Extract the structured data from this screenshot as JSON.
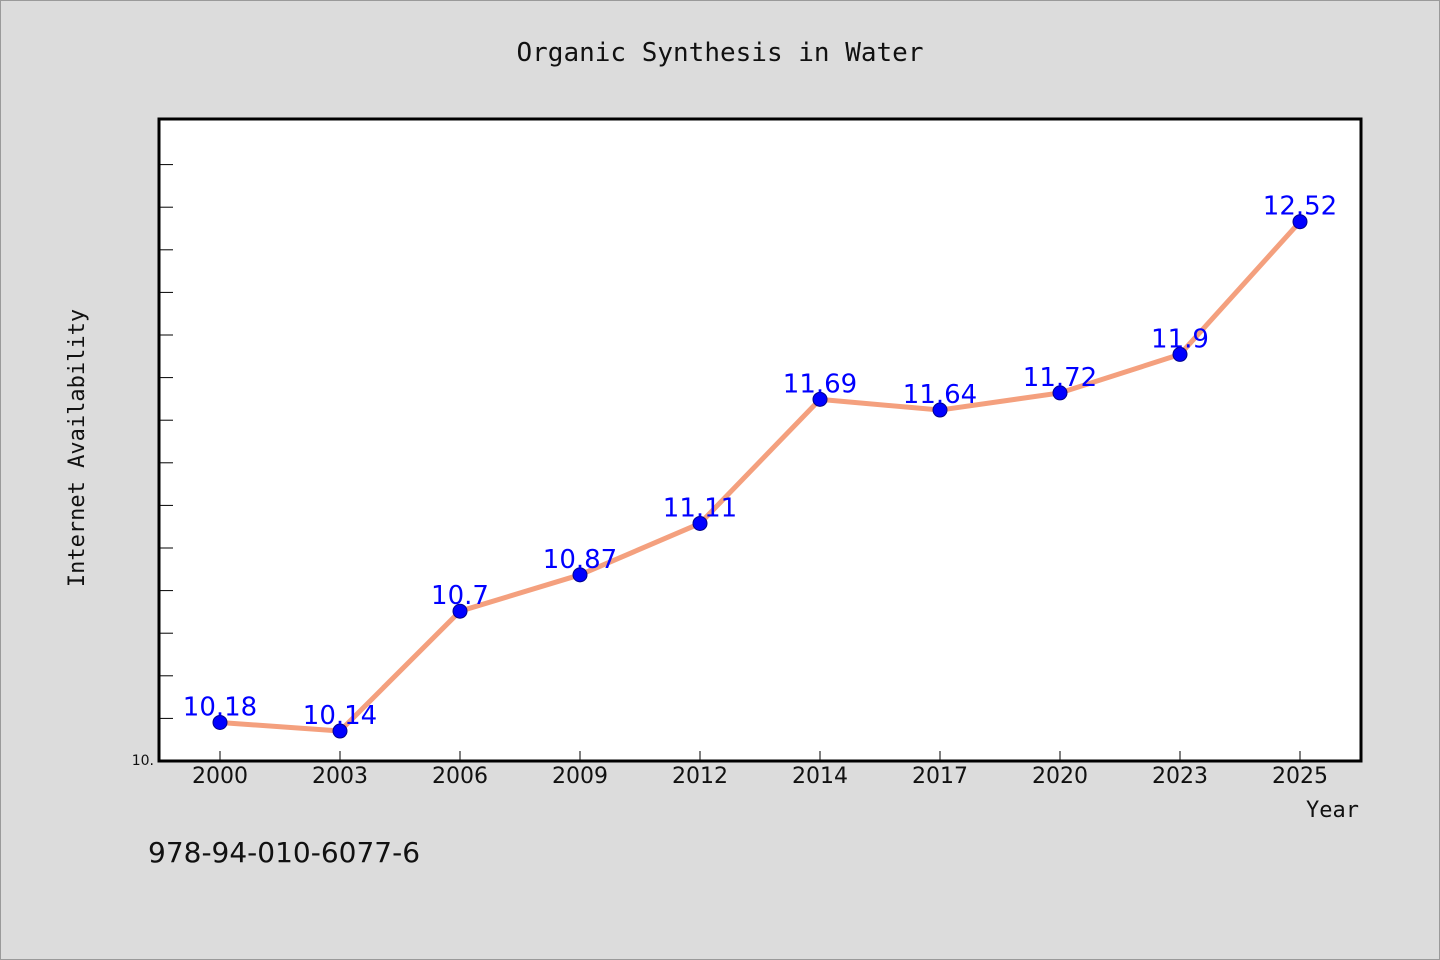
{
  "chart_data": {
    "type": "line",
    "title": "Organic Synthesis in Water",
    "xlabel": "Year",
    "ylabel": "Internet Availability",
    "categories": [
      "2000",
      "2003",
      "2006",
      "2009",
      "2012",
      "2014",
      "2017",
      "2020",
      "2023",
      "2025"
    ],
    "series": [
      {
        "values": [
          10.18,
          10.14,
          10.7,
          10.87,
          11.11,
          11.69,
          11.64,
          11.72,
          11.9,
          12.52
        ],
        "labels": [
          "10.18",
          "10.14",
          "10.7",
          "10.87",
          "11.11",
          "11.69",
          "11.64",
          "11.72",
          "11.9",
          "12.52"
        ]
      }
    ],
    "ylim": [
      10.0,
      13.0
    ],
    "y_tick_label": "10.",
    "grid": false,
    "line_color": "#f4a07e",
    "marker_color": "#0000ff",
    "label_color": "#0000ff",
    "plot_background": "#ffffff",
    "figure_background": "#dcdcdc"
  },
  "footer": {
    "isbn": "978-94-010-6077-6"
  }
}
